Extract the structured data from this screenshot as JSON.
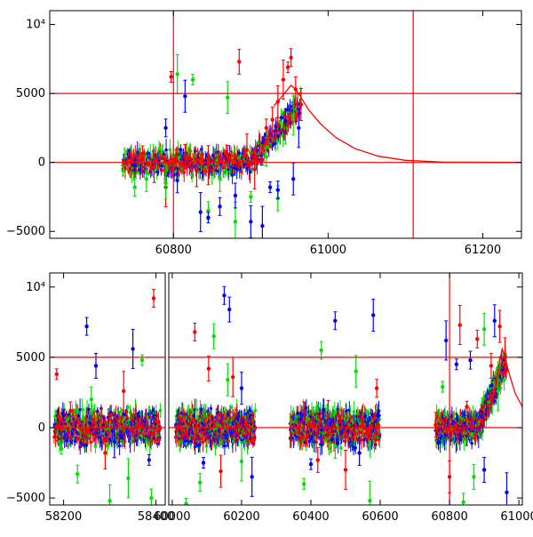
{
  "chart_data": [
    {
      "type": "scatter",
      "title": "",
      "xlabel": "",
      "ylabel": "",
      "xlim": [
        60640,
        61250
      ],
      "ylim": [
        -5500,
        11000
      ],
      "x_ticks": [
        60800,
        61000,
        61200
      ],
      "x_tick_labels": [
        "60800",
        "61000",
        "61200"
      ],
      "y_ticks": [
        -5000,
        0,
        5000,
        10000
      ],
      "y_tick_labels": [
        "−5000",
        "0",
        "5000",
        "10⁴"
      ],
      "grid": false,
      "legend": "none",
      "reference_lines": {
        "horizontal": [
          0,
          5000
        ],
        "vertical": [
          60800,
          61110
        ],
        "color": "#ff0000"
      },
      "model_curve": {
        "color": "#ff0000",
        "x": [
          60930,
          60945,
          60952,
          60958,
          60965,
          60975,
          60990,
          61010,
          61035,
          61065,
          61100,
          61150,
          61250
        ],
        "y": [
          4100,
          5100,
          5600,
          5300,
          4700,
          3800,
          2800,
          1800,
          1000,
          450,
          150,
          20,
          0
        ]
      },
      "series": [
        {
          "color": "#ff0000",
          "points": [
            [
              60735,
              -200
            ],
            [
              60745,
              100
            ],
            [
              60760,
              300
            ],
            [
              60775,
              -300
            ],
            [
              60790,
              -1800
            ],
            [
              60797,
              6200
            ],
            [
              60803,
              300
            ],
            [
              60815,
              400
            ],
            [
              60830,
              -600
            ],
            [
              60845,
              -200
            ],
            [
              60860,
              200
            ],
            [
              60870,
              600
            ],
            [
              60885,
              7300
            ],
            [
              60895,
              900
            ],
            [
              60905,
              -500
            ],
            [
              60915,
              200
            ],
            [
              60920,
              2500
            ],
            [
              60928,
              3100
            ],
            [
              60935,
              4400
            ],
            [
              60942,
              6000
            ],
            [
              60948,
              6900
            ],
            [
              60952,
              7600
            ],
            [
              60958,
              5300
            ],
            [
              60965,
              4200
            ]
          ]
        },
        {
          "color": "#00e000",
          "points": [
            [
              60735,
              -600
            ],
            [
              60750,
              -1800
            ],
            [
              60765,
              -1200
            ],
            [
              60790,
              -1500
            ],
            [
              60805,
              6400
            ],
            [
              60825,
              6000
            ],
            [
              60845,
              -3500
            ],
            [
              60860,
              -1200
            ],
            [
              60870,
              4700
            ],
            [
              60880,
              -4300
            ],
            [
              60900,
              -2500
            ],
            [
              60920,
              400
            ],
            [
              60935,
              -2600
            ],
            [
              60945,
              2500
            ],
            [
              60955,
              3400
            ]
          ]
        },
        {
          "color": "#0000ff",
          "points": [
            [
              60750,
              -200
            ],
            [
              60790,
              2500
            ],
            [
              60805,
              -1300
            ],
            [
              60815,
              4800
            ],
            [
              60835,
              -3600
            ],
            [
              60845,
              -4000
            ],
            [
              60860,
              -3200
            ],
            [
              60880,
              -2400
            ],
            [
              60900,
              -4300
            ],
            [
              60915,
              -4600
            ],
            [
              60925,
              -1800
            ],
            [
              60935,
              -2000
            ],
            [
              60945,
              3000
            ],
            [
              60955,
              -1200
            ],
            [
              60962,
              2500
            ]
          ]
        }
      ]
    },
    {
      "type": "scatter",
      "title": "",
      "xlabel": "",
      "ylabel": "",
      "x_segments": [
        {
          "xlim": [
            58170,
            58420
          ],
          "x_ticks": [
            58200,
            58400
          ],
          "x_tick_labels": [
            "58200",
            "58400"
          ]
        },
        {
          "xlim": [
            59990,
            61010
          ],
          "x_ticks": [
            60000,
            60200,
            60400,
            60600,
            60800,
            61000
          ],
          "x_tick_labels": [
            "60000",
            "60200",
            "60400",
            "60600",
            "60800",
            "61000"
          ]
        }
      ],
      "ylim": [
        -5500,
        11000
      ],
      "y_ticks": [
        -5000,
        0,
        5000,
        10000
      ],
      "y_tick_labels": [
        "−5000",
        "0",
        "5000",
        "10⁴"
      ],
      "grid": false,
      "legend": "none",
      "reference_lines": {
        "horizontal": [
          0,
          5000
        ],
        "vertical": [
          60800
        ],
        "color": "#ff0000"
      },
      "model_curve": {
        "color": "#ff0000",
        "x": [
          60900,
          60915,
          60930,
          60945,
          60952,
          60958,
          60965,
          60975,
          60990,
          61010
        ],
        "y": [
          400,
          1200,
          2600,
          4800,
          5600,
          5200,
          4500,
          3600,
          2400,
          1500
        ]
      },
      "series": [
        {
          "color": "#ff0000",
          "points": [
            [
              58185,
              3800
            ],
            [
              58215,
              1200
            ],
            [
              58250,
              -200
            ],
            [
              58290,
              -1800
            ],
            [
              58330,
              2600
            ],
            [
              58360,
              300
            ],
            [
              58395,
              9200
            ],
            [
              60030,
              -500
            ],
            [
              60065,
              6800
            ],
            [
              60105,
              4200
            ],
            [
              60140,
              -3100
            ],
            [
              60175,
              3600
            ],
            [
              60215,
              200
            ],
            [
              60380,
              1200
            ],
            [
              60420,
              -2300
            ],
            [
              60450,
              800
            ],
            [
              60500,
              -3000
            ],
            [
              60550,
              300
            ],
            [
              60590,
              2800
            ],
            [
              60760,
              200
            ],
            [
              60800,
              -3500
            ],
            [
              60830,
              7300
            ],
            [
              60850,
              1500
            ],
            [
              60880,
              6300
            ],
            [
              60920,
              4400
            ],
            [
              60945,
              7200
            ],
            [
              60960,
              5000
            ]
          ]
        },
        {
          "color": "#00e000",
          "points": [
            [
              58195,
              -1500
            ],
            [
              58230,
              -3300
            ],
            [
              58260,
              2000
            ],
            [
              58300,
              -5200
            ],
            [
              58340,
              -3600
            ],
            [
              58370,
              4800
            ],
            [
              58390,
              -5000
            ],
            [
              60040,
              -5400
            ],
            [
              60080,
              -3900
            ],
            [
              60120,
              6500
            ],
            [
              60160,
              3400
            ],
            [
              60200,
              -2400
            ],
            [
              60380,
              -4000
            ],
            [
              60430,
              5500
            ],
            [
              60470,
              -1300
            ],
            [
              60530,
              4000
            ],
            [
              60570,
              -5200
            ],
            [
              60780,
              2900
            ],
            [
              60840,
              -5300
            ],
            [
              60870,
              -3500
            ],
            [
              60900,
              7000
            ],
            [
              60940,
              2600
            ]
          ]
        },
        {
          "color": "#0000ff",
          "points": [
            [
              58200,
              900
            ],
            [
              58250,
              7200
            ],
            [
              58270,
              4400
            ],
            [
              58310,
              -1000
            ],
            [
              58350,
              5600
            ],
            [
              58385,
              -2300
            ],
            [
              60090,
              -2500
            ],
            [
              60150,
              9400
            ],
            [
              60165,
              8400
            ],
            [
              60200,
              2800
            ],
            [
              60230,
              -3500
            ],
            [
              60400,
              -2600
            ],
            [
              60470,
              7600
            ],
            [
              60540,
              -1800
            ],
            [
              60580,
              8000
            ],
            [
              60790,
              6200
            ],
            [
              60820,
              4500
            ],
            [
              60860,
              4800
            ],
            [
              60900,
              -3000
            ],
            [
              60930,
              7600
            ],
            [
              60965,
              -4600
            ]
          ]
        }
      ]
    }
  ]
}
